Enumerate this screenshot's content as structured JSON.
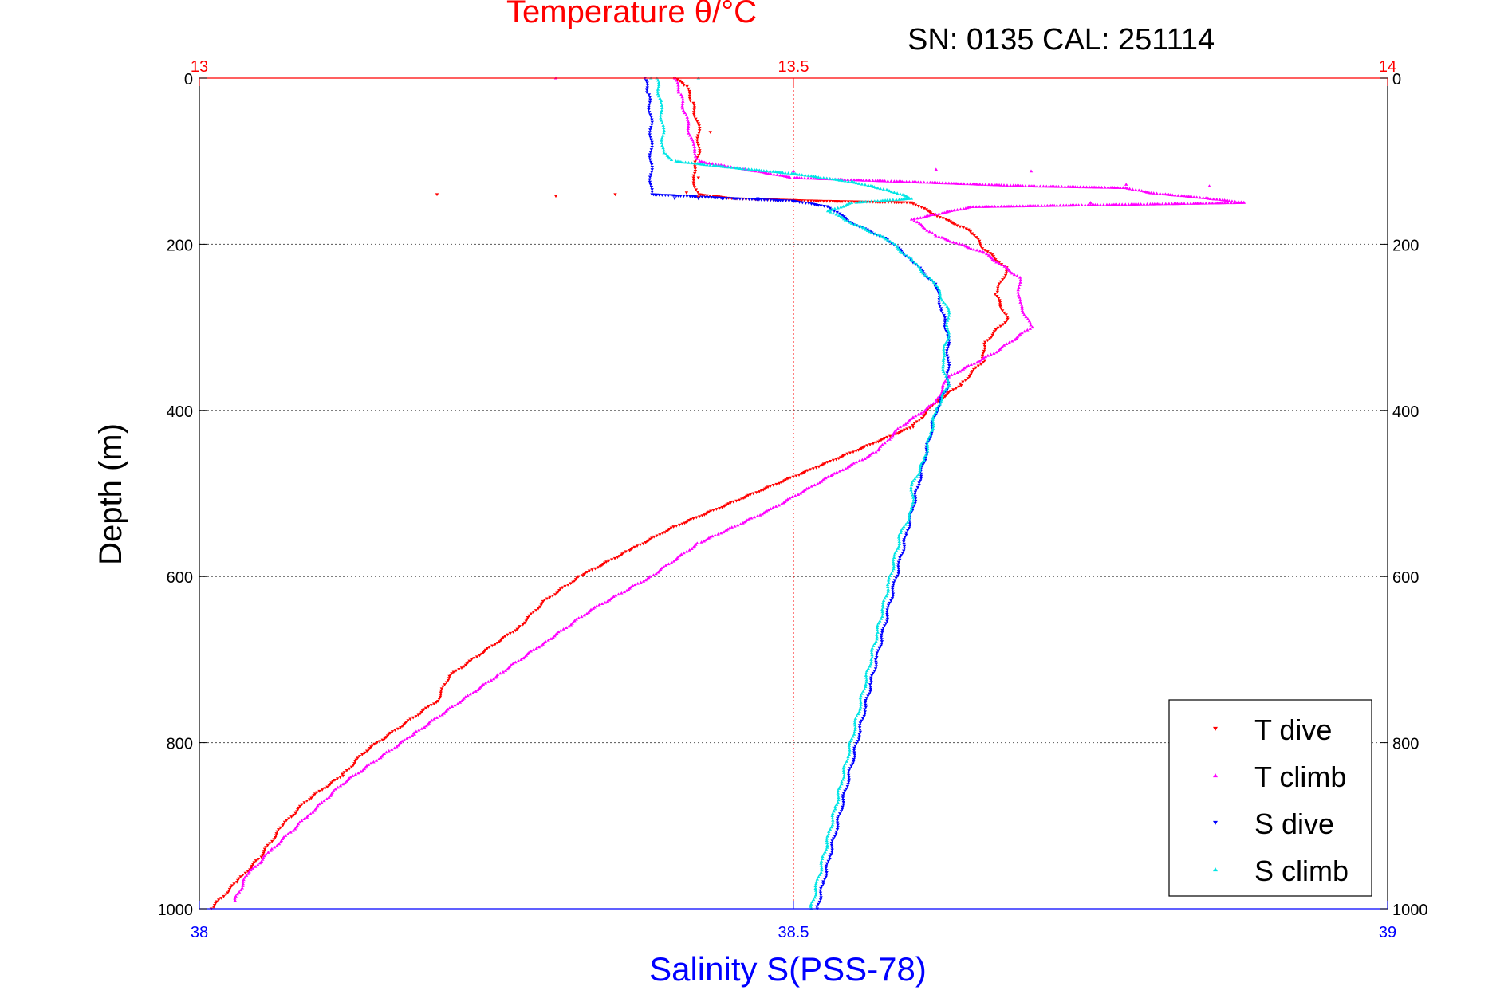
{
  "header": {
    "title": "Temperature θ/°C",
    "serial": "SN: 0135  CAL: 251114"
  },
  "chart_data": {
    "type": "scatter",
    "title": "Temperature θ/°C",
    "xlabel": "Salinity S(PSS-78)",
    "ylabel": "Depth (m)",
    "top_xlabel": "Temperature θ/°C",
    "annotation": "SN: 0135  CAL: 251114",
    "xlim": [
      38,
      39
    ],
    "x2lim": [
      13,
      14
    ],
    "ylim": [
      0,
      1000
    ],
    "y_reversed": true,
    "xticks": [
      "38",
      "38.5",
      "39"
    ],
    "x2ticks": [
      "13",
      "13.5",
      "14"
    ],
    "yticks": [
      "0",
      "200",
      "400",
      "600",
      "800",
      "1000"
    ],
    "grid": true,
    "legend_position": "bottom-right",
    "series": [
      {
        "name": "T dive",
        "axis": "temperature",
        "color": "#ff0000",
        "marker": "triangle-down",
        "points": [
          [
            13.4,
            0
          ],
          [
            13.41,
            10
          ],
          [
            13.415,
            30
          ],
          [
            13.42,
            60
          ],
          [
            13.42,
            90
          ],
          [
            13.415,
            120
          ],
          [
            13.42,
            140
          ],
          [
            13.45,
            145
          ],
          [
            13.52,
            148
          ],
          [
            13.6,
            150
          ],
          [
            13.62,
            165
          ],
          [
            13.65,
            185
          ],
          [
            13.66,
            205
          ],
          [
            13.68,
            230
          ],
          [
            13.67,
            260
          ],
          [
            13.68,
            290
          ],
          [
            13.66,
            320
          ],
          [
            13.66,
            340
          ],
          [
            13.64,
            370
          ],
          [
            13.62,
            390
          ],
          [
            13.6,
            420
          ],
          [
            13.55,
            450
          ],
          [
            13.5,
            480
          ],
          [
            13.45,
            510
          ],
          [
            13.4,
            540
          ],
          [
            13.36,
            570
          ],
          [
            13.32,
            600
          ],
          [
            13.29,
            630
          ],
          [
            13.27,
            660
          ],
          [
            13.24,
            690
          ],
          [
            13.21,
            720
          ],
          [
            13.2,
            750
          ],
          [
            13.17,
            780
          ],
          [
            13.14,
            810
          ],
          [
            13.12,
            840
          ],
          [
            13.09,
            870
          ],
          [
            13.07,
            900
          ],
          [
            13.05,
            940
          ],
          [
            13.03,
            970
          ],
          [
            13.01,
            1000
          ]
        ]
      },
      {
        "name": "T climb",
        "axis": "temperature",
        "color": "#ff00ff",
        "marker": "triangle-up",
        "points": [
          [
            13.4,
            0
          ],
          [
            13.405,
            20
          ],
          [
            13.41,
            50
          ],
          [
            13.415,
            80
          ],
          [
            13.42,
            100
          ],
          [
            13.5,
            120
          ],
          [
            13.6,
            125
          ],
          [
            13.7,
            130
          ],
          [
            13.78,
            132
          ],
          [
            13.8,
            138
          ],
          [
            13.85,
            145
          ],
          [
            13.88,
            150
          ],
          [
            13.65,
            155
          ],
          [
            13.6,
            170
          ],
          [
            13.62,
            190
          ],
          [
            13.66,
            210
          ],
          [
            13.69,
            240
          ],
          [
            13.69,
            270
          ],
          [
            13.7,
            300
          ],
          [
            13.67,
            330
          ],
          [
            13.63,
            360
          ],
          [
            13.62,
            390
          ],
          [
            13.59,
            420
          ],
          [
            13.57,
            450
          ],
          [
            13.53,
            480
          ],
          [
            13.48,
            520
          ],
          [
            13.42,
            560
          ],
          [
            13.38,
            600
          ],
          [
            13.33,
            640
          ],
          [
            13.29,
            680
          ],
          [
            13.25,
            720
          ],
          [
            13.22,
            750
          ],
          [
            13.18,
            790
          ],
          [
            13.15,
            820
          ],
          [
            13.12,
            850
          ],
          [
            13.09,
            890
          ],
          [
            13.06,
            930
          ],
          [
            13.04,
            960
          ],
          [
            13.03,
            990
          ]
        ]
      },
      {
        "name": "S dive",
        "axis": "salinity",
        "color": "#0000ff",
        "marker": "triangle-down",
        "points": [
          [
            38.375,
            0
          ],
          [
            38.378,
            20
          ],
          [
            38.38,
            50
          ],
          [
            38.38,
            80
          ],
          [
            38.38,
            110
          ],
          [
            38.38,
            140
          ],
          [
            38.45,
            145
          ],
          [
            38.5,
            148
          ],
          [
            38.53,
            155
          ],
          [
            38.55,
            175
          ],
          [
            38.58,
            195
          ],
          [
            38.6,
            220
          ],
          [
            38.62,
            250
          ],
          [
            38.625,
            280
          ],
          [
            38.63,
            310
          ],
          [
            38.63,
            340
          ],
          [
            38.63,
            370
          ],
          [
            38.62,
            400
          ],
          [
            38.615,
            430
          ],
          [
            38.61,
            460
          ],
          [
            38.605,
            490
          ],
          [
            38.6,
            520
          ],
          [
            38.595,
            550
          ],
          [
            38.59,
            580
          ],
          [
            38.585,
            610
          ],
          [
            38.58,
            640
          ],
          [
            38.575,
            670
          ],
          [
            38.57,
            700
          ],
          [
            38.565,
            730
          ],
          [
            38.56,
            760
          ],
          [
            38.555,
            790
          ],
          [
            38.55,
            820
          ],
          [
            38.545,
            850
          ],
          [
            38.54,
            880
          ],
          [
            38.535,
            910
          ],
          [
            38.53,
            940
          ],
          [
            38.525,
            970
          ],
          [
            38.52,
            1000
          ]
        ]
      },
      {
        "name": "S climb",
        "axis": "salinity",
        "color": "#00e5e5",
        "marker": "triangle-up",
        "points": [
          [
            38.385,
            0
          ],
          [
            38.388,
            30
          ],
          [
            38.39,
            60
          ],
          [
            38.39,
            90
          ],
          [
            38.4,
            100
          ],
          [
            38.45,
            108
          ],
          [
            38.5,
            115
          ],
          [
            38.55,
            125
          ],
          [
            38.58,
            135
          ],
          [
            38.6,
            145
          ],
          [
            38.55,
            150
          ],
          [
            38.53,
            160
          ],
          [
            38.55,
            175
          ],
          [
            38.58,
            195
          ],
          [
            38.6,
            220
          ],
          [
            38.62,
            250
          ],
          [
            38.63,
            280
          ],
          [
            38.63,
            310
          ],
          [
            38.625,
            340
          ],
          [
            38.63,
            370
          ],
          [
            38.62,
            400
          ],
          [
            38.615,
            430
          ],
          [
            38.61,
            460
          ],
          [
            38.6,
            490
          ],
          [
            38.6,
            520
          ],
          [
            38.59,
            550
          ],
          [
            38.585,
            580
          ],
          [
            38.58,
            610
          ],
          [
            38.575,
            640
          ],
          [
            38.57,
            670
          ],
          [
            38.565,
            700
          ],
          [
            38.56,
            730
          ],
          [
            38.555,
            760
          ],
          [
            38.55,
            790
          ],
          [
            38.545,
            820
          ],
          [
            38.54,
            850
          ],
          [
            38.535,
            880
          ],
          [
            38.53,
            910
          ],
          [
            38.525,
            940
          ],
          [
            38.52,
            970
          ],
          [
            38.515,
            1000
          ]
        ]
      }
    ],
    "outliers": [
      {
        "series": "T dive",
        "points": [
          [
            13.43,
            65
          ],
          [
            13.42,
            120
          ],
          [
            13.41,
            138
          ],
          [
            13.2,
            140
          ],
          [
            13.3,
            142
          ],
          [
            13.42,
            143
          ],
          [
            13.35,
            140
          ]
        ]
      },
      {
        "series": "T climb",
        "points": [
          [
            13.3,
            0
          ],
          [
            13.4,
            0
          ],
          [
            13.5,
            112
          ],
          [
            13.62,
            110
          ],
          [
            13.7,
            112
          ],
          [
            13.78,
            128
          ],
          [
            13.85,
            130
          ],
          [
            13.75,
            150
          ]
        ]
      },
      {
        "series": "S dive",
        "points": [
          [
            38.4,
            145
          ],
          [
            38.42,
            145
          ],
          [
            38.44,
            145
          ],
          [
            38.47,
            145
          ]
        ]
      },
      {
        "series": "S climb",
        "points": [
          [
            38.42,
            0
          ],
          [
            38.38,
            0
          ]
        ]
      }
    ]
  }
}
